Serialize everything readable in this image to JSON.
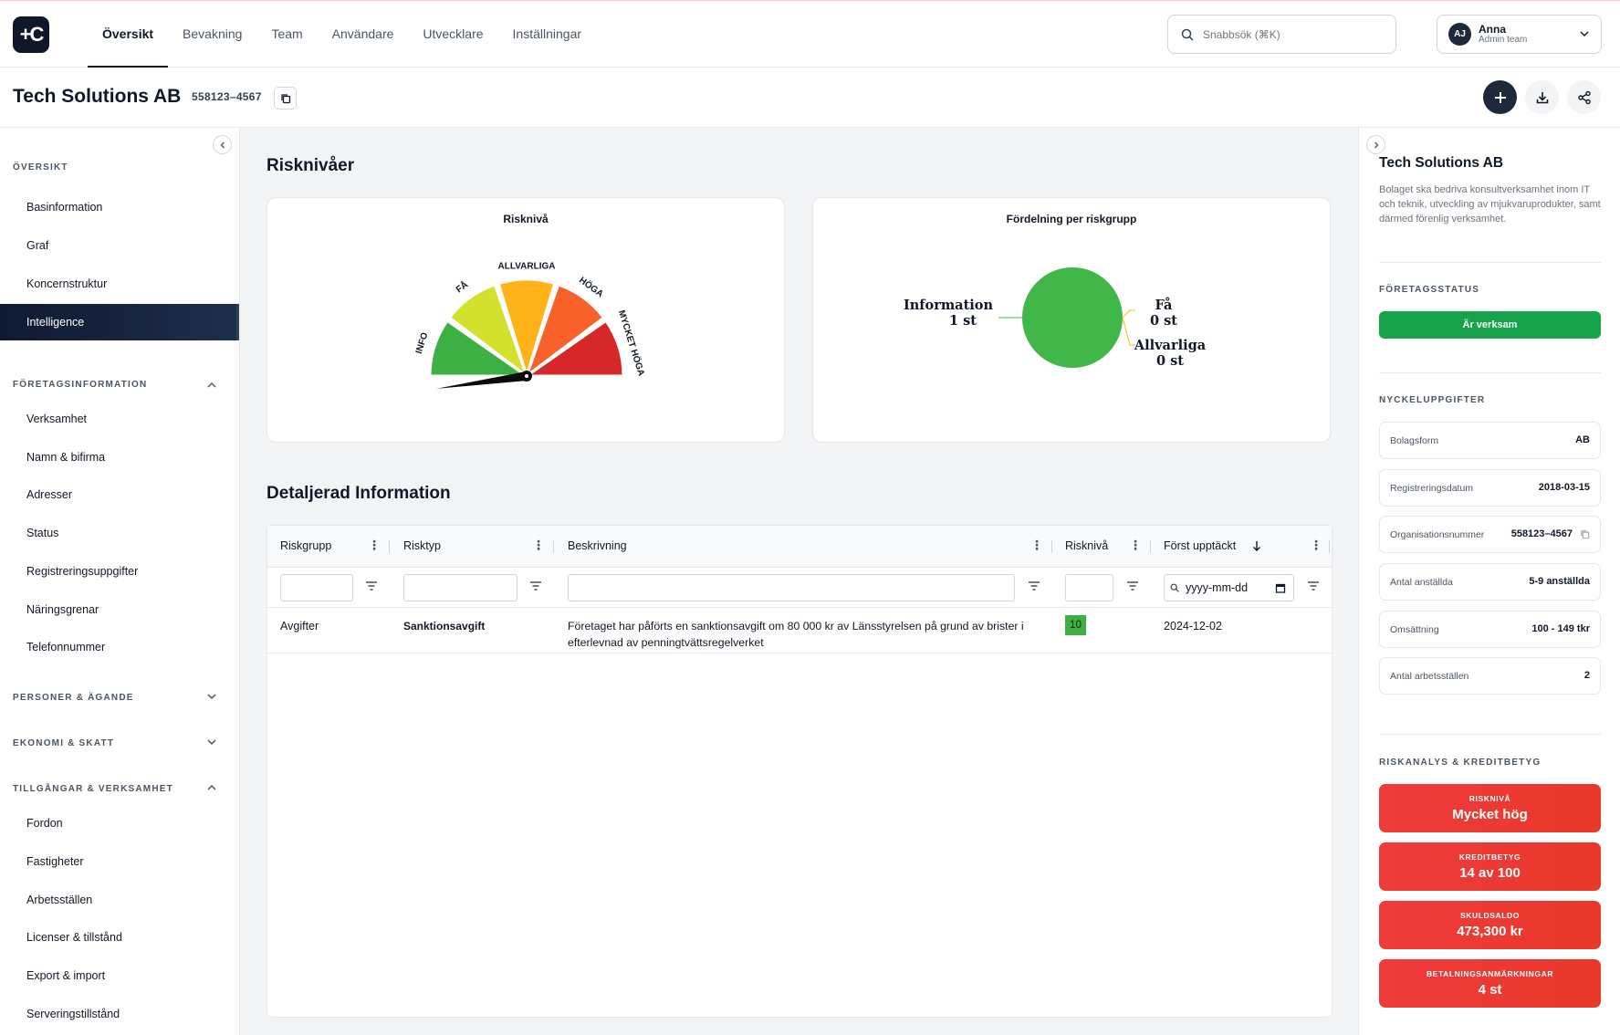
{
  "app": {
    "logo_text": "+C"
  },
  "nav": [
    "Översikt",
    "Bevakning",
    "Team",
    "Användare",
    "Utvecklare",
    "Inställningar"
  ],
  "search": {
    "placeholder": "Snabbsök (⌘K)"
  },
  "user": {
    "initials": "AJ",
    "name": "Anna",
    "role": "Admin team"
  },
  "company": {
    "name": "Tech Solutions AB",
    "org_number": "558123–4567"
  },
  "sidebar": {
    "sections": [
      {
        "title": "ÖVERSIKT",
        "items": [
          "Basinformation",
          "Graf",
          "Koncernstruktur",
          "Intelligence"
        ]
      },
      {
        "title": "FÖRETAGSINFORMATION",
        "items": [
          "Verksamhet",
          "Namn & bifirma",
          "Adresser",
          "Status",
          "Registreringsuppgifter",
          "Näringsgrenar",
          "Telefonnummer"
        ]
      },
      {
        "title": "PERSONER & ÄGANDE",
        "items": []
      },
      {
        "title": "EKONOMI & SKATT",
        "items": []
      },
      {
        "title": "TILLGÅNGAR & VERKSAMHET",
        "items": [
          "Fordon",
          "Fastigheter",
          "Arbetsställen",
          "Licenser & tillstånd",
          "Export & import",
          "Serveringstillstånd"
        ]
      }
    ],
    "active_item": "Intelligence"
  },
  "main": {
    "risk_title": "Risknivåer",
    "detail_title": "Detaljerad Information"
  },
  "gauge": {
    "title": "Risknivå",
    "segments": [
      {
        "label": "INFO",
        "color": "#3cb043"
      },
      {
        "label": "FÅ",
        "color": "#d4e02e"
      },
      {
        "label": "ALLVARLIGA",
        "color": "#ffb319"
      },
      {
        "label": "HÖGA",
        "color": "#f8612a"
      },
      {
        "label": "MYCKET HÖGA",
        "color": "#d62828"
      }
    ],
    "needle_segment": "INFO"
  },
  "chart_data": {
    "type": "pie",
    "title": "Fördelning per riskgrupp",
    "categories": [
      "Information",
      "Få",
      "Allvarliga"
    ],
    "values": [
      1,
      0,
      0
    ],
    "units": "st",
    "labels": [
      "1 st",
      "0 st",
      "0 st"
    ],
    "colors": [
      "#41b649",
      "#f5c400",
      "#f5c400"
    ]
  },
  "table": {
    "columns": [
      "Riskgrupp",
      "Risktyp",
      "Beskrivning",
      "Risknivå",
      "Först upptäckt"
    ],
    "date_placeholder": "yyyy-mm-dd",
    "rows": [
      {
        "riskgrupp": "Avgifter",
        "risktyp": "Sanktionsavgift",
        "beskrivning": "Företaget har påförts en sanktionsavgift om 80 000 kr av Länsstyrelsen på grund av brister i efterlevnad av penningtvättsregelverket",
        "riskniva": "10",
        "upptackt": "2024-12-02"
      }
    ]
  },
  "right": {
    "title": "Tech Solutions AB",
    "description": "Bolaget ska bedriva konsultverksamhet inom IT och teknik, utveckling av mjukvaruprodukter, samt därmed förenlig verksamhet.",
    "status_section": "FÖRETAGSSTATUS",
    "status_value": "Är verksam",
    "key_section": "NYCKELUPPGIFTER",
    "key_values": [
      {
        "k": "Bolagsform",
        "v": "AB"
      },
      {
        "k": "Registreringsdatum",
        "v": "2018-03-15"
      },
      {
        "k": "Organisationsnummer",
        "v": "558123–4567"
      },
      {
        "k": "Antal anställda",
        "v": "5-9 anställda"
      },
      {
        "k": "Omsättning",
        "v": "100 - 149 tkr"
      },
      {
        "k": "Antal arbetsställen",
        "v": "2"
      }
    ],
    "risk_section": "RISKANALYS & KREDITBETYG",
    "risk_cards": [
      {
        "label": "RISKNIVÅ",
        "value": "Mycket hög"
      },
      {
        "label": "KREDITBETYG",
        "value": "14 av 100"
      },
      {
        "label": "SKULDSALDO",
        "value": "473,300 kr"
      },
      {
        "label": "BETALNINGSANMÄRKNINGAR",
        "value": "4 st"
      }
    ]
  }
}
